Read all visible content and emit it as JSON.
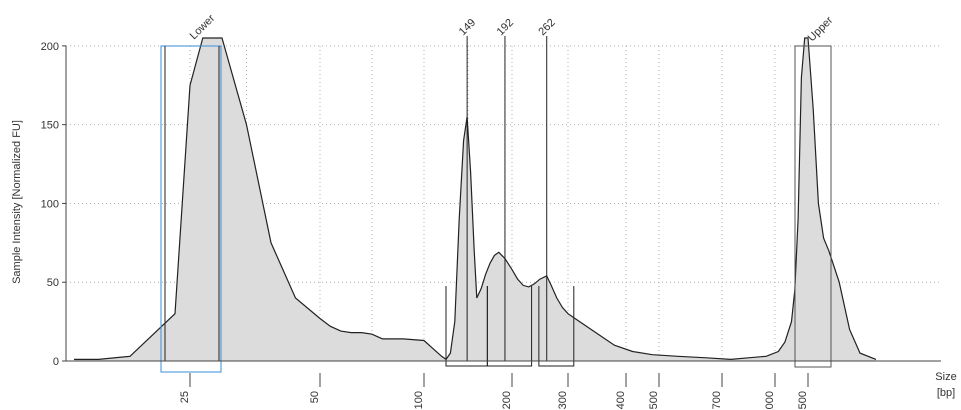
{
  "chart_data": {
    "type": "area",
    "title": "",
    "xlabel": "Size [bp]",
    "xlabel_lines": [
      "Size",
      "[bp]"
    ],
    "ylabel": "Sample Intensity [Normalized FU]",
    "ylim": [
      0,
      205
    ],
    "y_ticks": [
      0,
      50,
      100,
      150,
      200
    ],
    "x_scale": "ladder (non-linear)",
    "x_ticks": [
      25,
      50,
      100,
      200,
      300,
      400,
      500,
      700,
      1000,
      1500
    ],
    "grid": true,
    "colors": {
      "fill": "#dcdcdc",
      "line": "#222222",
      "lower_marker": "#3a8fd9",
      "upper_marker": "#555555",
      "grid": "#b0b0b0"
    },
    "x": [
      15,
      18,
      21,
      24,
      25,
      27,
      30,
      35,
      40,
      45,
      50,
      55,
      60,
      65,
      70,
      75,
      80,
      90,
      100,
      110,
      120,
      125,
      130,
      135,
      140,
      145,
      149,
      153,
      157,
      160,
      165,
      170,
      175,
      180,
      185,
      192,
      200,
      210,
      220,
      230,
      240,
      250,
      262,
      270,
      280,
      290,
      300,
      320,
      340,
      380,
      420,
      480,
      560,
      650,
      750,
      850,
      950,
      1050,
      1150,
      1250,
      1300,
      1350,
      1400,
      1450,
      1500,
      1550,
      1600,
      1650,
      1700,
      1800,
      1900,
      2000,
      2100
    ],
    "values": [
      1,
      1,
      3,
      30,
      175,
      205,
      205,
      150,
      75,
      40,
      27,
      22,
      19,
      18,
      18,
      17,
      14,
      14,
      13,
      8,
      3,
      1,
      5,
      25,
      90,
      140,
      155,
      120,
      70,
      40,
      46,
      55,
      62,
      67,
      69,
      65,
      58,
      52,
      48,
      47,
      49,
      52,
      54,
      48,
      40,
      34,
      30,
      25,
      20,
      10,
      6,
      4,
      3,
      2,
      1,
      2,
      3,
      6,
      12,
      25,
      45,
      90,
      180,
      205,
      205,
      160,
      100,
      78,
      70,
      50,
      20,
      5,
      1
    ],
    "markers": [
      {
        "name": "Lower",
        "size": 25
      },
      {
        "name": "Upper",
        "size": 1500
      }
    ],
    "peaks": [
      {
        "label": "149",
        "size": 149
      },
      {
        "label": "192",
        "size": 192
      },
      {
        "label": "262",
        "size": 262
      }
    ],
    "regions": [
      {
        "from": 125,
        "to": 172
      },
      {
        "from": 172,
        "to": 235
      },
      {
        "from": 248,
        "to": 310
      }
    ]
  }
}
